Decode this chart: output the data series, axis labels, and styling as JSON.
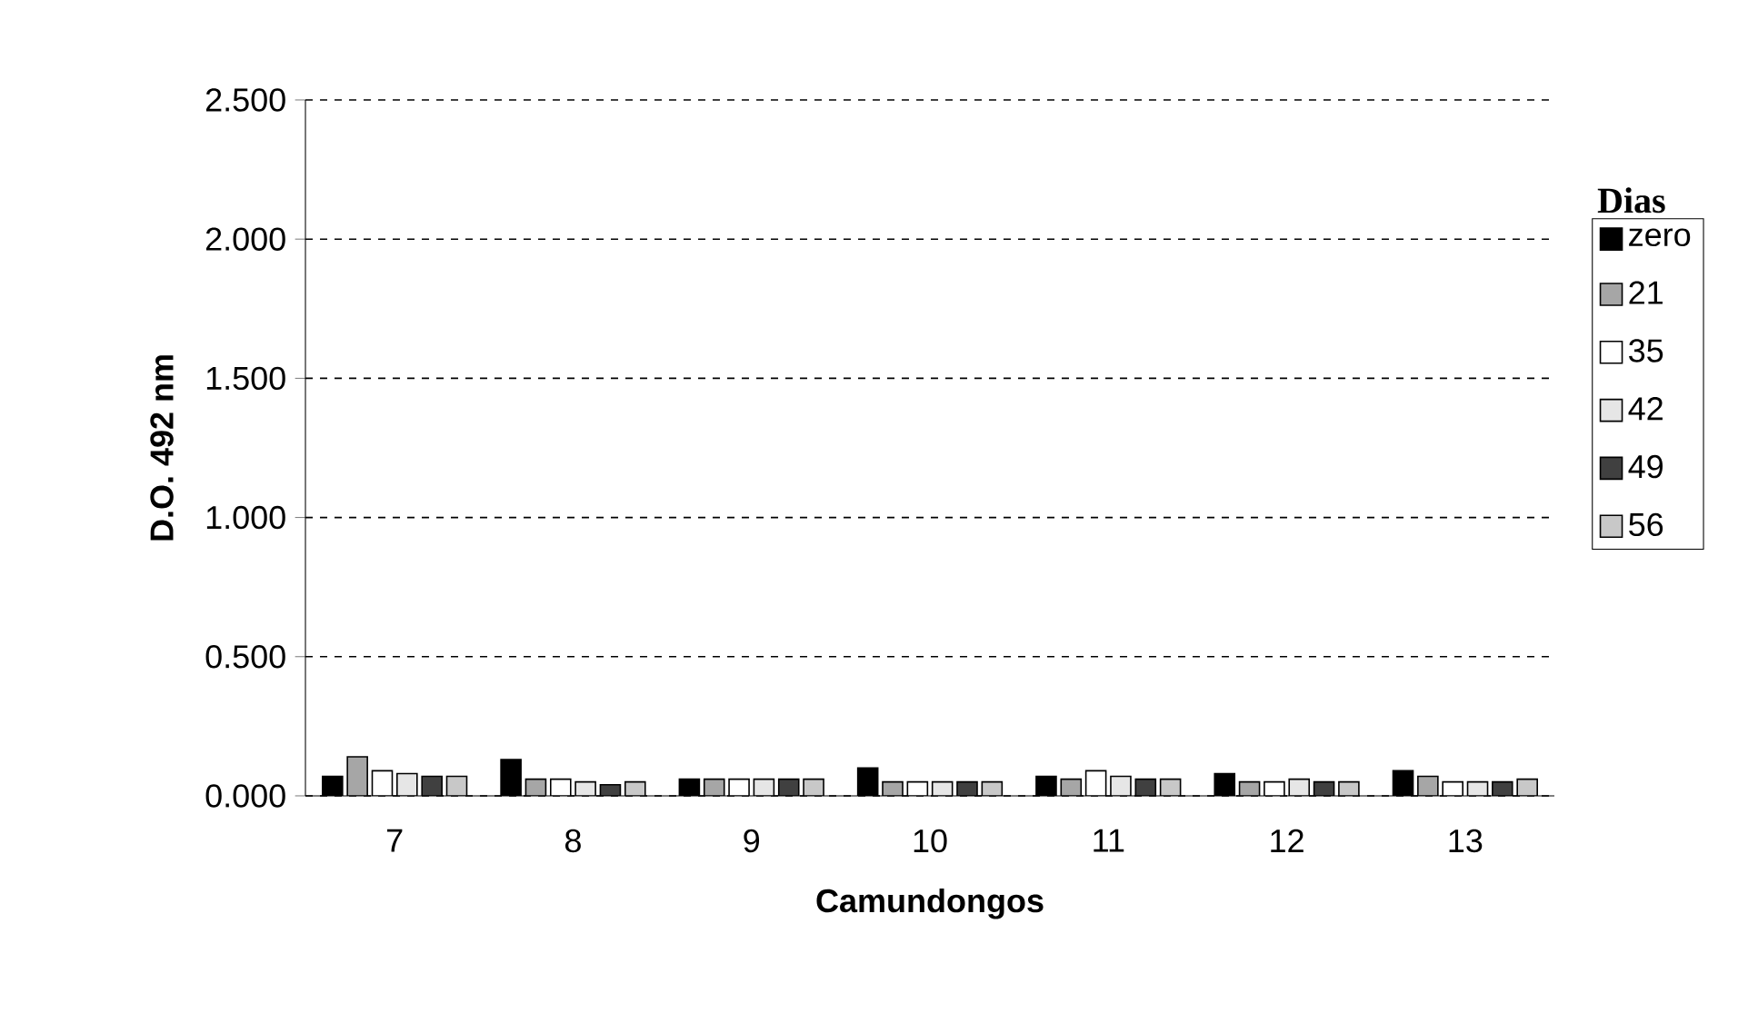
{
  "chart_data": {
    "type": "bar",
    "xlabel": "Camundongos",
    "ylabel": "D.O. 492 nm",
    "legend_title": "Dias",
    "categories": [
      "7",
      "8",
      "9",
      "10",
      "11",
      "12",
      "13"
    ],
    "series": [
      {
        "name": "zero",
        "color": "#000000",
        "values": [
          0.07,
          0.13,
          0.06,
          0.1,
          0.07,
          0.08,
          0.09
        ]
      },
      {
        "name": "21",
        "color": "#a6a6a6",
        "values": [
          0.14,
          0.06,
          0.06,
          0.05,
          0.06,
          0.05,
          0.07
        ]
      },
      {
        "name": "35",
        "color": "#ffffff",
        "values": [
          0.09,
          0.06,
          0.06,
          0.05,
          0.09,
          0.05,
          0.05
        ]
      },
      {
        "name": "42",
        "color": "#e6e6e6",
        "values": [
          0.08,
          0.05,
          0.06,
          0.05,
          0.07,
          0.06,
          0.05
        ]
      },
      {
        "name": "49",
        "color": "#404040",
        "values": [
          0.07,
          0.04,
          0.06,
          0.05,
          0.06,
          0.05,
          0.05
        ]
      },
      {
        "name": "56",
        "color": "#c8c8c8",
        "values": [
          0.07,
          0.05,
          0.06,
          0.05,
          0.06,
          0.05,
          0.06
        ]
      }
    ],
    "ylim": [
      0,
      2.5
    ],
    "yticks": [
      {
        "value": 0,
        "label": "0.000"
      },
      {
        "value": 0.5,
        "label": "0.500"
      },
      {
        "value": 1,
        "label": "1.000"
      },
      {
        "value": 1.5,
        "label": "1.500"
      },
      {
        "value": 2,
        "label": "2.000"
      },
      {
        "value": 2.5,
        "label": "2.500"
      }
    ],
    "grid": "y",
    "legend": "right"
  }
}
